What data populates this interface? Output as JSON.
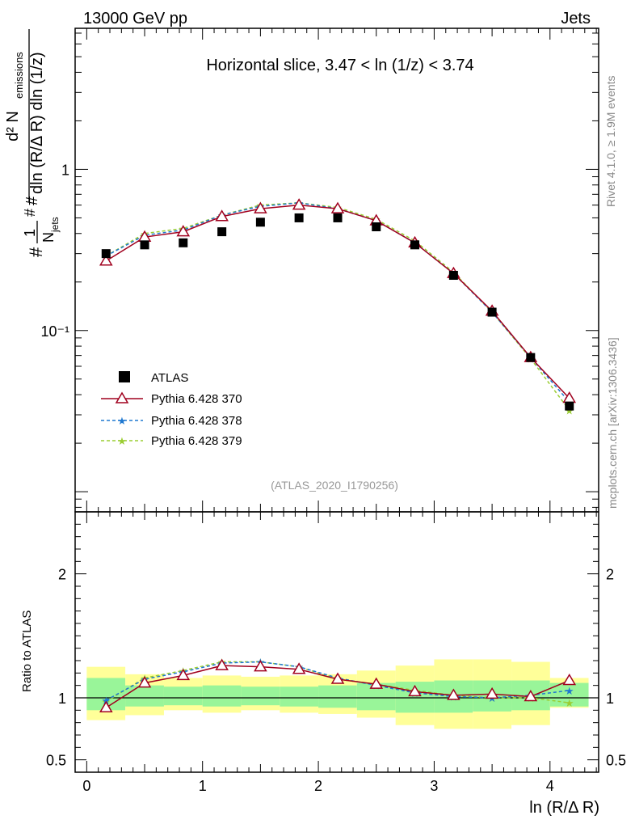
{
  "header": {
    "left_title": "13000 GeV pp",
    "right_title": "Jets"
  },
  "side_labels": {
    "rivet": "Rivet 4.1.0, ≥ 1.9M events",
    "mcplots": "mcplots.cern.ch [arXiv:1306.3436]"
  },
  "chart_data": {
    "type": "scatter",
    "title": "Horizontal slice, 3.47 < ln (1/z) < 3.74",
    "analysis_label": "(ATLAS_2020_I1790256)",
    "xlabel": "ln (R/Δ R)",
    "ylabel_main": "1/N_jets d²N_emissions / dln(R/ΔR) dln(1/z)",
    "ylabel_ratio": "Ratio to ATLAS",
    "xlim": [
      -0.1,
      4.42
    ],
    "ylim_main": [
      0.0075,
      7.5
    ],
    "yscale_main": "log",
    "ylim_ratio": [
      0.4,
      2.5
    ],
    "x_ticks": [
      {
        "value": 0,
        "label": "0"
      },
      {
        "value": 1,
        "label": "1"
      },
      {
        "value": 2,
        "label": "2"
      },
      {
        "value": 3,
        "label": "3"
      },
      {
        "value": 4,
        "label": "4"
      }
    ],
    "y_ticks_main": [
      {
        "value": 1,
        "label": "1"
      },
      {
        "value": 0.1,
        "label": "10⁻¹"
      }
    ],
    "y_ticks_ratio": [
      {
        "value": 2,
        "label": "2"
      },
      {
        "value": 1,
        "label": "1"
      },
      {
        "value": 0.5,
        "label": "0.5"
      }
    ],
    "x": [
      0.167,
      0.5,
      0.833,
      1.167,
      1.5,
      1.833,
      2.167,
      2.5,
      2.833,
      3.167,
      3.5,
      3.833,
      4.167
    ],
    "bin_edges": [
      0,
      0.333,
      0.667,
      1.0,
      1.333,
      1.667,
      2.0,
      2.333,
      2.667,
      3.0,
      3.333,
      3.667,
      4.0,
      4.333
    ],
    "data": {
      "name": "ATLAS",
      "values": [
        0.3,
        0.34,
        0.35,
        0.41,
        0.47,
        0.5,
        0.5,
        0.44,
        0.34,
        0.22,
        0.13,
        0.068,
        0.034
      ],
      "band_inner": [
        [
          0.9,
          1.16
        ],
        [
          0.93,
          1.1
        ],
        [
          0.94,
          1.09
        ],
        [
          0.93,
          1.1
        ],
        [
          0.94,
          1.09
        ],
        [
          0.93,
          1.09
        ],
        [
          0.92,
          1.1
        ],
        [
          0.9,
          1.12
        ],
        [
          0.88,
          1.13
        ],
        [
          0.88,
          1.14
        ],
        [
          0.89,
          1.14
        ],
        [
          0.9,
          1.14
        ],
        [
          0.93,
          1.12
        ]
      ]
    },
    "band_outer": [
      [
        0.82,
        1.25
      ],
      [
        0.86,
        1.19
      ],
      [
        0.9,
        1.16
      ],
      [
        0.88,
        1.18
      ],
      [
        0.9,
        1.17
      ],
      [
        0.88,
        1.18
      ],
      [
        0.87,
        1.19
      ],
      [
        0.84,
        1.22
      ],
      [
        0.78,
        1.26
      ],
      [
        0.75,
        1.31
      ],
      [
        0.75,
        1.31
      ],
      [
        0.78,
        1.29
      ],
      [
        0.92,
        1.16
      ]
    ],
    "series": [
      {
        "name": "Pythia 6.428 370",
        "color": "#a0001e",
        "marker": "triangle-open",
        "linestyle": "solid",
        "values": [
          0.27,
          0.38,
          0.41,
          0.51,
          0.57,
          0.6,
          0.57,
          0.48,
          0.35,
          0.226,
          0.132,
          0.068,
          0.038
        ],
        "ratio": [
          0.92,
          1.12,
          1.18,
          1.26,
          1.25,
          1.23,
          1.15,
          1.11,
          1.05,
          1.02,
          1.03,
          1.01,
          1.14
        ]
      },
      {
        "name": "Pythia 6.428 378",
        "color": "#1f78d0",
        "marker": "star",
        "linestyle": "dashed",
        "values": [
          0.29,
          0.39,
          0.42,
          0.52,
          0.59,
          0.62,
          0.57,
          0.48,
          0.35,
          0.226,
          0.13,
          0.068,
          0.036
        ],
        "ratio": [
          0.98,
          1.15,
          1.21,
          1.28,
          1.29,
          1.25,
          1.16,
          1.1,
          1.04,
          1.01,
          1.0,
          1.02,
          1.06
        ]
      },
      {
        "name": "Pythia 6.428 379",
        "color": "#9acd32",
        "marker": "star",
        "linestyle": "dashed",
        "values": [
          0.29,
          0.4,
          0.43,
          0.52,
          0.6,
          0.62,
          0.58,
          0.49,
          0.36,
          0.23,
          0.13,
          0.067,
          0.032
        ],
        "ratio": [
          0.97,
          1.16,
          1.22,
          1.29,
          1.29,
          1.25,
          1.15,
          1.11,
          1.06,
          1.02,
          1.0,
          1.0,
          0.96
        ]
      }
    ]
  }
}
